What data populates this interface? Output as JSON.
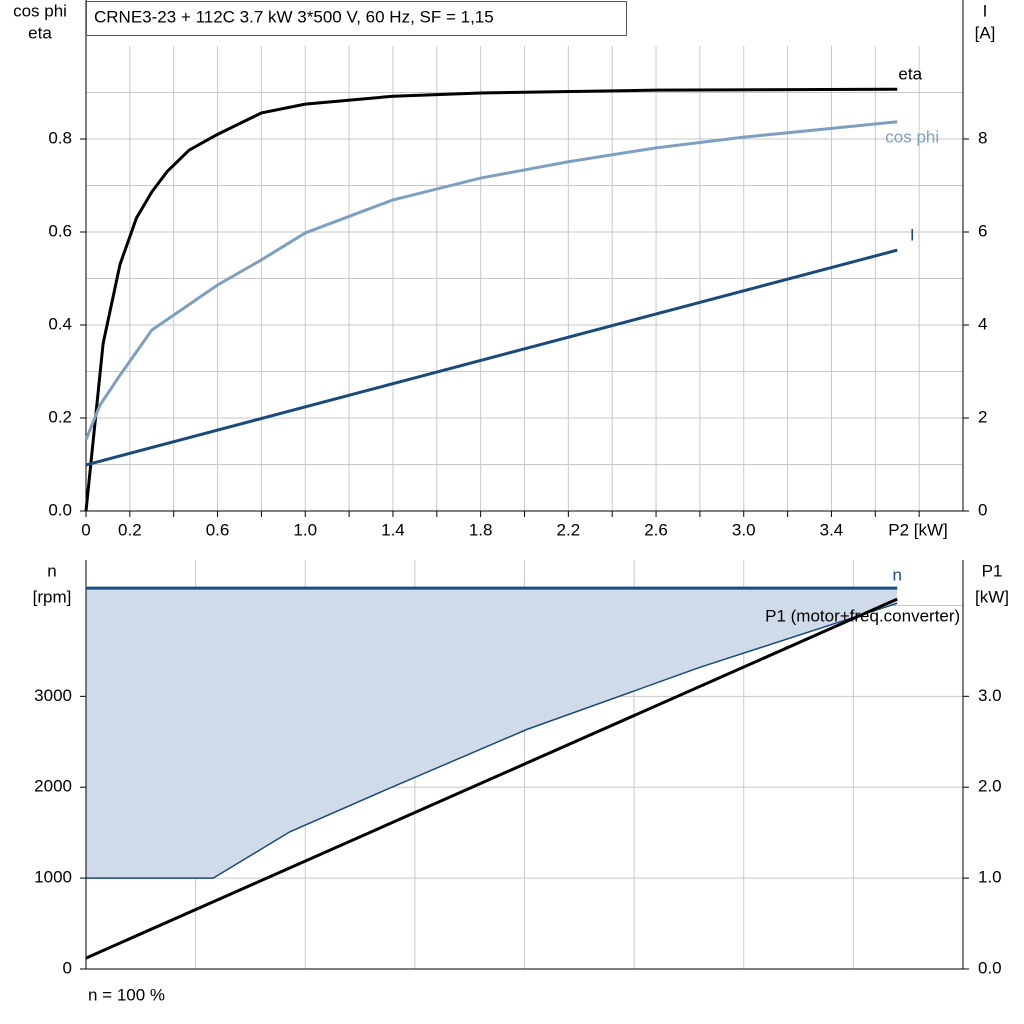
{
  "chart_data": [
    {
      "type": "line",
      "title": "CRNE3-23 + 112C   3.7 kW   3*500 V, 60 Hz, SF = 1,15",
      "x_label": "P2 [kW]",
      "y_label": [
        "cos phi",
        "eta"
      ],
      "y2_label": [
        "I",
        "[A]"
      ],
      "xlim": [
        0,
        4.0
      ],
      "xticks": [
        0,
        0.2,
        0.6,
        {
          "value": 1,
          "label": "1.0"
        },
        1.4,
        1.8,
        2.2,
        2.6,
        {
          "value": 3,
          "label": "3.0"
        },
        3.4
      ],
      "x_minor_ticks": [
        0.4,
        0.8,
        1.2,
        1.6,
        2.0,
        2.4,
        2.8,
        3.2,
        3.6,
        3.8
      ],
      "ylim": [
        0,
        1.0
      ],
      "yticks": [
        {
          "value": 0,
          "label": "0.0"
        },
        0.2,
        0.4,
        0.6,
        0.8
      ],
      "y_minor_ticks": [
        0.1,
        0.3,
        0.5,
        0.7,
        0.9
      ],
      "y2lim": [
        0,
        10
      ],
      "y2ticks": [
        0,
        2,
        4,
        6,
        8
      ],
      "grid": true,
      "series": [
        {
          "name": "eta",
          "color": "#000000",
          "x": [
            0,
            0.078,
            0.155,
            0.23,
            0.3,
            0.37,
            0.47,
            0.6,
            0.8,
            1.0,
            1.4,
            1.8,
            2.6,
            3.7
          ],
          "values": [
            0,
            0.36,
            0.53,
            0.63,
            0.686,
            0.73,
            0.776,
            0.81,
            0.856,
            0.875,
            0.892,
            0.899,
            0.905,
            0.907
          ]
        },
        {
          "name": "cos phi",
          "color": "#7f9fbf",
          "x": [
            0,
            0.064,
            0.155,
            0.3,
            0.6,
            0.8,
            1.0,
            1.4,
            1.8,
            2.2,
            2.6,
            3.0,
            3.7
          ],
          "values": [
            0.153,
            0.228,
            0.292,
            0.389,
            0.486,
            0.54,
            0.598,
            0.669,
            0.716,
            0.751,
            0.781,
            0.804,
            0.837
          ]
        },
        {
          "name": "I",
          "color": "#1a4a7c",
          "axis": "y2",
          "x": [
            0,
            3.7
          ],
          "values": [
            0.99,
            5.61
          ]
        }
      ]
    },
    {
      "type": "line",
      "y_label": [
        "n",
        "[rpm]"
      ],
      "y2_label": [
        "P1",
        "[kW]"
      ],
      "annotation": "n = 100 %",
      "xlim": [
        0,
        4.0
      ],
      "x_minor_ticks": [
        0.5,
        1.0,
        1.5,
        2.0,
        2.5,
        3.0,
        3.5
      ],
      "ylim": [
        0,
        4500
      ],
      "yticks": [
        0,
        1000,
        2000,
        3000
      ],
      "y_minor_ticks": [
        4000
      ],
      "y2lim": [
        0,
        4.5
      ],
      "y2ticks": [
        {
          "value": 0,
          "label": "0.0"
        },
        {
          "value": 1,
          "label": "1.0"
        },
        {
          "value": 2,
          "label": "2.0"
        },
        {
          "value": 3,
          "label": "3.0"
        }
      ],
      "grid": true,
      "shaded_range": {
        "color": "#cfdbe8",
        "line_color": "#1a4a7c",
        "x": [
          0,
          0.58,
          0.93,
          1.37,
          2.01,
          2.8,
          3.7
        ],
        "values": [
          1000,
          1000,
          1510,
          1974,
          2635,
          3319,
          4024
        ]
      },
      "series": [
        {
          "name": "n",
          "color": "#1a4a7c",
          "x": [
            0,
            3.7
          ],
          "values": [
            4190,
            4190
          ]
        },
        {
          "name": "P1 (motor+freq.converter)",
          "color": "#000000",
          "axis": "y2",
          "x": [
            0,
            3.7
          ],
          "values": [
            0.12,
            4.07
          ]
        }
      ]
    }
  ]
}
